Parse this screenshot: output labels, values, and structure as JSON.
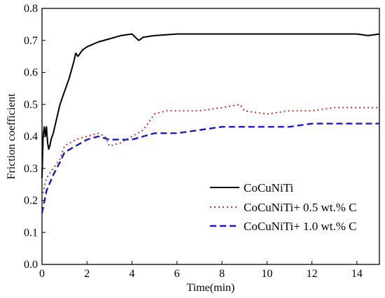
{
  "chart_data": {
    "type": "line",
    "title": "",
    "xlabel": "Time(min)",
    "ylabel": "Friction coefficient",
    "xlim": [
      0,
      15
    ],
    "ylim": [
      0.0,
      0.8
    ],
    "xticks": [
      0,
      2,
      4,
      6,
      8,
      10,
      12,
      14
    ],
    "yticks": [
      0.0,
      0.1,
      0.2,
      0.3,
      0.4,
      0.5,
      0.6,
      0.7,
      0.8
    ],
    "xtick_labels": [
      "0",
      "2",
      "4",
      "6",
      "8",
      "10",
      "12",
      "14"
    ],
    "ytick_labels": [
      "0.0",
      "0.1",
      "0.2",
      "0.3",
      "0.4",
      "0.5",
      "0.6",
      "0.7",
      "0.8"
    ],
    "grid": false,
    "legend_position": "lower-right",
    "series": [
      {
        "name": "CoCuNiTi",
        "color": "#000000",
        "style": "solid",
        "x": [
          0.0,
          0.05,
          0.1,
          0.15,
          0.2,
          0.25,
          0.3,
          0.35,
          0.4,
          0.5,
          0.6,
          0.7,
          0.8,
          0.9,
          1.0,
          1.2,
          1.4,
          1.5,
          1.6,
          1.8,
          2.0,
          2.5,
          3.0,
          3.5,
          4.0,
          4.3,
          4.5,
          5.0,
          6.0,
          7.0,
          8.0,
          9.0,
          10.0,
          11.0,
          12.0,
          13.0,
          14.0,
          14.5,
          15.0
        ],
        "y": [
          0.27,
          0.4,
          0.43,
          0.4,
          0.43,
          0.38,
          0.36,
          0.37,
          0.39,
          0.41,
          0.44,
          0.47,
          0.5,
          0.52,
          0.54,
          0.58,
          0.63,
          0.66,
          0.65,
          0.67,
          0.68,
          0.695,
          0.705,
          0.715,
          0.72,
          0.7,
          0.71,
          0.715,
          0.72,
          0.72,
          0.72,
          0.72,
          0.72,
          0.72,
          0.72,
          0.72,
          0.72,
          0.715,
          0.72
        ]
      },
      {
        "name": "CoCuNiTi+ 0.5 wt.% C",
        "color": "#cc3322",
        "style": "dotted",
        "x": [
          0.0,
          0.2,
          0.5,
          0.8,
          1.0,
          1.5,
          2.0,
          2.5,
          2.8,
          3.0,
          3.5,
          4.0,
          4.5,
          5.0,
          5.5,
          6.0,
          7.0,
          8.0,
          8.8,
          9.0,
          10.0,
          11.0,
          12.0,
          13.0,
          14.0,
          15.0
        ],
        "y": [
          0.21,
          0.27,
          0.3,
          0.33,
          0.37,
          0.39,
          0.4,
          0.41,
          0.4,
          0.37,
          0.38,
          0.4,
          0.42,
          0.47,
          0.48,
          0.48,
          0.48,
          0.49,
          0.5,
          0.48,
          0.47,
          0.48,
          0.48,
          0.49,
          0.49,
          0.49
        ]
      },
      {
        "name": "CoCuNiTi+ 1.0 wt.% C",
        "color": "#1a1acc",
        "style": "dashed",
        "x": [
          0.0,
          0.2,
          0.5,
          0.8,
          1.0,
          1.5,
          2.0,
          2.5,
          3.0,
          3.5,
          4.0,
          4.5,
          5.0,
          6.0,
          7.0,
          8.0,
          9.0,
          10.0,
          11.0,
          12.0,
          13.0,
          14.0,
          15.0
        ],
        "y": [
          0.16,
          0.23,
          0.28,
          0.32,
          0.35,
          0.37,
          0.39,
          0.4,
          0.39,
          0.39,
          0.39,
          0.4,
          0.41,
          0.41,
          0.42,
          0.43,
          0.43,
          0.43,
          0.43,
          0.44,
          0.44,
          0.44,
          0.44
        ]
      }
    ]
  }
}
